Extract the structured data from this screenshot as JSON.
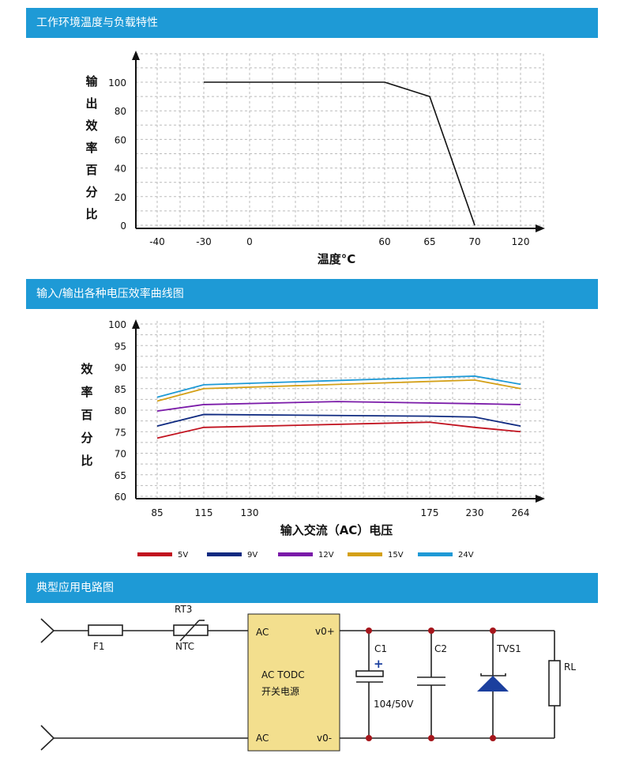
{
  "sections": {
    "derating_title": "工作环境温度与负载特性",
    "efficiency_title": "输入/输出各种电压效率曲线图",
    "circuit_title": "典型应用电路图"
  },
  "chart_data": [
    {
      "type": "line",
      "ylabel": "输出效率百分比",
      "xlabel": "温度°C",
      "x_ticks": [
        "-40",
        "-30",
        "0",
        "60",
        "65",
        "70",
        "120"
      ],
      "y_ticks": [
        "0",
        "20",
        "40",
        "60",
        "80",
        "100"
      ],
      "series": [
        {
          "x": [
            "-30",
            "60",
            "65",
            "70"
          ],
          "values": [
            100,
            100,
            90,
            0
          ],
          "color": "#111111"
        }
      ],
      "ylim": [
        0,
        100
      ],
      "grid": true
    },
    {
      "type": "line",
      "ylabel": "效率百分比",
      "xlabel": "输入交流（AC）电压",
      "categories": [
        "85",
        "115",
        "130",
        "175",
        "230",
        "264"
      ],
      "y_ticks": [
        "60",
        "65",
        "70",
        "75",
        "80",
        "85",
        "90",
        "95",
        "100"
      ],
      "ylim": [
        60,
        100
      ],
      "grid": true,
      "series": [
        {
          "name": "5V",
          "color": "#c1121f",
          "x": [
            85,
            115,
            175,
            230,
            264
          ],
          "values": [
            73.5,
            76,
            77.2,
            76,
            75
          ]
        },
        {
          "name": "9V",
          "color": "#0f2a80",
          "x": [
            85,
            115,
            175,
            230,
            264
          ],
          "values": [
            76.3,
            79,
            78.6,
            78.4,
            76.3
          ]
        },
        {
          "name": "12V",
          "color": "#7a1aa8",
          "x": [
            85,
            115,
            152,
            230,
            264
          ],
          "values": [
            79.8,
            81.3,
            82,
            81.5,
            81.3
          ]
        },
        {
          "name": "15V",
          "color": "#d4a017",
          "x": [
            85,
            115,
            230,
            264
          ],
          "values": [
            82.1,
            85,
            87,
            85
          ]
        },
        {
          "name": "24V",
          "color": "#1e9ad6",
          "x": [
            85,
            115,
            230,
            264
          ],
          "values": [
            83,
            85.9,
            87.9,
            86
          ]
        }
      ]
    }
  ],
  "circuit": {
    "module_line1": "AC  TODC",
    "module_line2": "开关电源",
    "pin_ac_top": "AC",
    "pin_ac_bottom": "AC",
    "pin_vplus": "v0+",
    "pin_vminus": "v0-",
    "rt3": "RT3",
    "f1": "F1",
    "ntc": "NTC",
    "c1": "C1",
    "c1_plus": "+",
    "c1_value": "104/50V",
    "c2": "C2",
    "tvs1": "TVS1",
    "rl": "RL"
  }
}
